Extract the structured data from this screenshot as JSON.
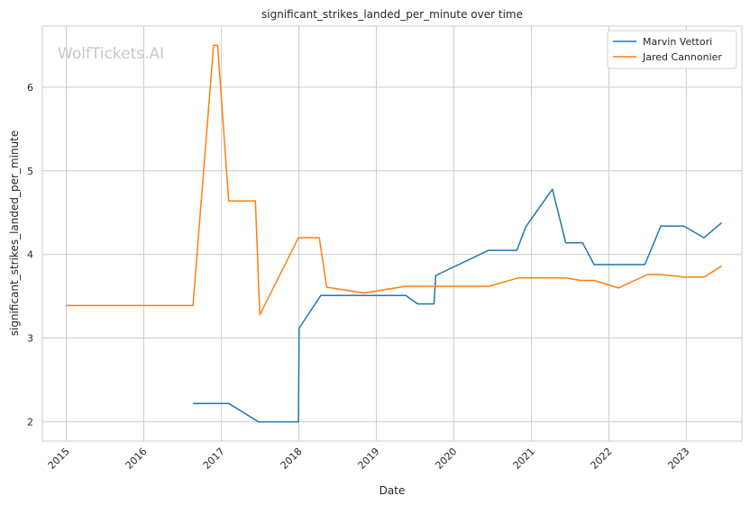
{
  "chart_data": {
    "type": "line",
    "title": "significant_strikes_landed_per_minute over time",
    "xlabel": "Date",
    "ylabel": "significant_strikes_landed_per_minute",
    "watermark": "WolfTickets.AI",
    "xlim": [
      "2014-09-10",
      "2023-09-20"
    ],
    "ylim": [
      1.77,
      6.73
    ],
    "x_ticks": [
      "2015",
      "2016",
      "2017",
      "2018",
      "2019",
      "2020",
      "2021",
      "2022",
      "2023"
    ],
    "y_ticks": [
      "2",
      "3",
      "4",
      "5",
      "6"
    ],
    "grid": true,
    "legend_position": "top-right",
    "colors": {
      "Marvin Vettori": "#1f77b4",
      "Jared Cannonier": "#ff7f0e"
    },
    "series": [
      {
        "name": "Marvin Vettori",
        "points": [
          [
            "2016-08-20",
            2.22
          ],
          [
            "2017-02-04",
            2.22
          ],
          [
            "2017-06-25",
            2.0
          ],
          [
            "2017-12-30",
            2.0
          ],
          [
            "2018-01-02",
            3.12
          ],
          [
            "2018-04-14",
            3.51
          ],
          [
            "2019-05-20",
            3.51
          ],
          [
            "2019-07-15",
            3.41
          ],
          [
            "2019-09-30",
            3.41
          ],
          [
            "2019-10-08",
            3.75
          ],
          [
            "2020-06-13",
            4.05
          ],
          [
            "2020-10-24",
            4.05
          ],
          [
            "2020-12-05",
            4.33
          ],
          [
            "2021-04-10",
            4.78
          ],
          [
            "2021-06-12",
            4.14
          ],
          [
            "2021-08-30",
            4.14
          ],
          [
            "2021-10-23",
            3.88
          ],
          [
            "2022-06-20",
            3.88
          ],
          [
            "2022-09-03",
            4.34
          ],
          [
            "2022-12-20",
            4.34
          ],
          [
            "2023-03-25",
            4.2
          ],
          [
            "2023-06-17",
            4.38
          ]
        ]
      },
      {
        "name": "Jared Cannonier",
        "points": [
          [
            "2014-12-31",
            3.39
          ],
          [
            "2016-08-20",
            3.39
          ],
          [
            "2016-11-25",
            6.5
          ],
          [
            "2016-12-14",
            6.5
          ],
          [
            "2017-02-04",
            4.64
          ],
          [
            "2017-06-10",
            4.64
          ],
          [
            "2017-07-01",
            3.28
          ],
          [
            "2017-12-30",
            4.2
          ],
          [
            "2018-04-07",
            4.2
          ],
          [
            "2018-05-12",
            3.61
          ],
          [
            "2018-11-03",
            3.54
          ],
          [
            "2019-05-18",
            3.62
          ],
          [
            "2019-10-12",
            3.62
          ],
          [
            "2020-06-13",
            3.62
          ],
          [
            "2020-10-30",
            3.72
          ],
          [
            "2021-06-12",
            3.72
          ],
          [
            "2021-08-20",
            3.69
          ],
          [
            "2021-10-23",
            3.69
          ],
          [
            "2022-02-15",
            3.6
          ],
          [
            "2022-07-02",
            3.76
          ],
          [
            "2022-09-03",
            3.76
          ],
          [
            "2022-12-20",
            3.73
          ],
          [
            "2023-03-25",
            3.73
          ],
          [
            "2023-06-17",
            3.86
          ]
        ]
      }
    ]
  }
}
